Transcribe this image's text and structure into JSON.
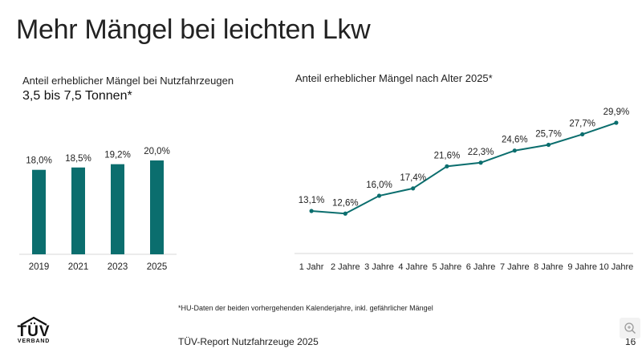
{
  "page": {
    "title": "Mehr Mängel bei leichten Lkw",
    "footnote": "*HU-Daten der beiden vorhergehenden Kalenderjahre, inkl. gefährlicher Mängel",
    "report_name": "TÜV-Report Nutzfahrzeuge 2025",
    "page_number": "16",
    "logo": {
      "main": "TÜV",
      "sub": "VERBAND"
    },
    "accent_color": "#0b6e6e",
    "icons": {
      "zoom": "zoom-in-icon"
    }
  },
  "chart_data": [
    {
      "type": "bar",
      "title": "Anteil erheblicher Mängel bei Nutzfahrzeugen",
      "subtitle": "3,5 bis 7,5 Tonnen*",
      "categories": [
        "2019",
        "2021",
        "2023",
        "2025"
      ],
      "values": [
        18.0,
        18.5,
        19.2,
        20.0
      ],
      "labels": [
        "18,0%",
        "18,5%",
        "19,2%",
        "20,0%"
      ],
      "ylim": [
        0,
        20
      ],
      "xlabel": "",
      "ylabel": "",
      "grid": false,
      "legend": "none"
    },
    {
      "type": "line",
      "title": "Anteil erheblicher Mängel nach Alter 2025*",
      "categories": [
        "1 Jahr",
        "2 Jahre",
        "3 Jahre",
        "4 Jahre",
        "5 Jahre",
        "6 Jahre",
        "7 Jahre",
        "8 Jahre",
        "9 Jahre",
        "10 Jahre"
      ],
      "values": [
        13.1,
        12.6,
        16.0,
        17.4,
        21.6,
        22.3,
        24.6,
        25.7,
        27.7,
        29.9
      ],
      "labels": [
        "13,1%",
        "12,6%",
        "16,0%",
        "17,4%",
        "21,6%",
        "22,3%",
        "24,6%",
        "25,7%",
        "27,7%",
        "29,9%"
      ],
      "ylim": [
        0,
        31
      ],
      "xlabel": "",
      "ylabel": "",
      "grid": false,
      "legend": "none"
    }
  ]
}
